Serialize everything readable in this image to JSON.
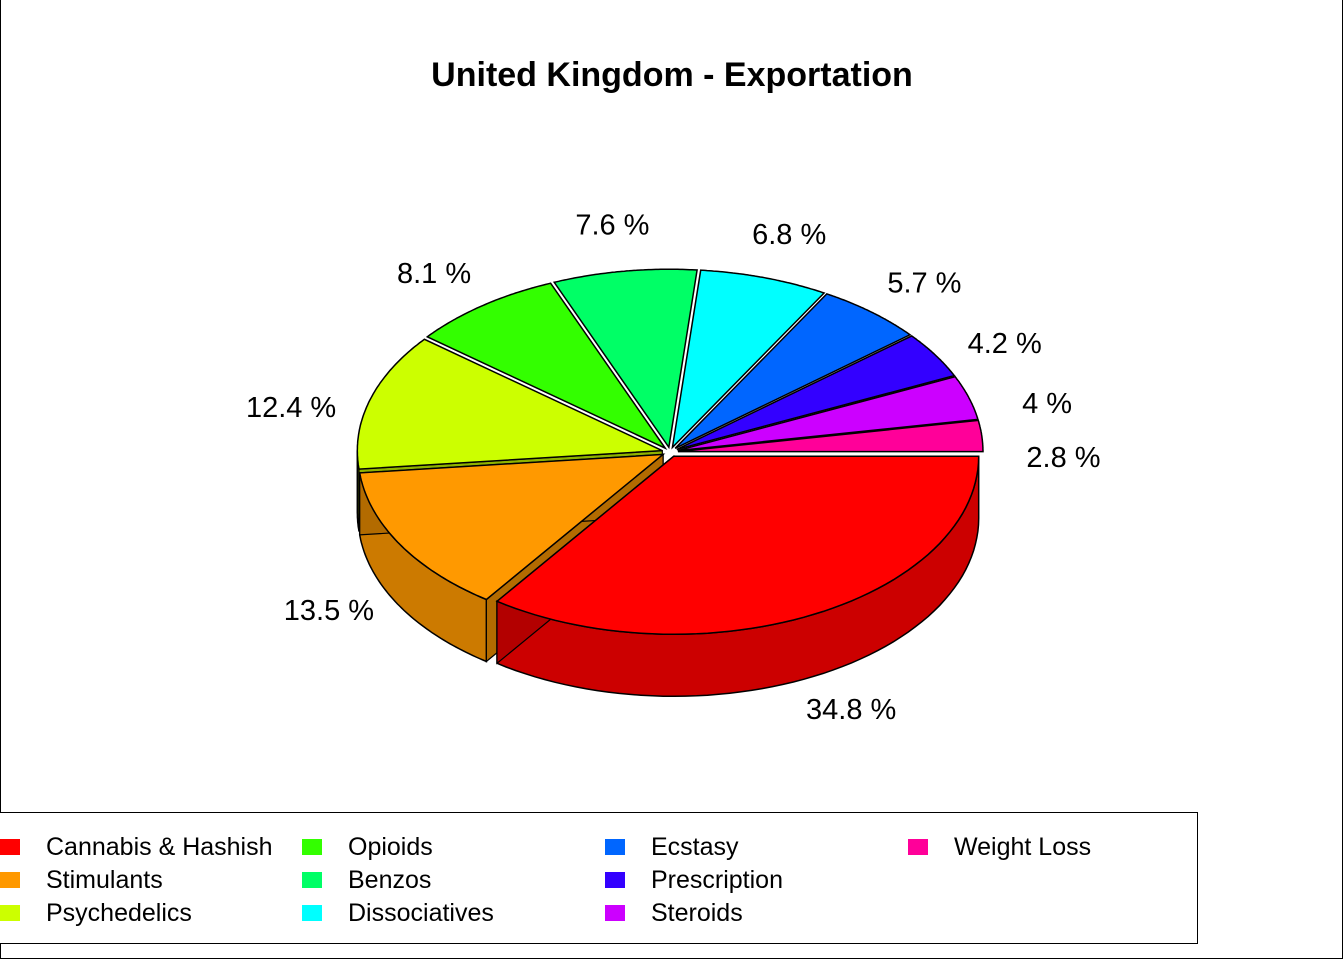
{
  "chart_data": {
    "type": "pie",
    "title": "United Kingdom - Exportation",
    "three_d": true,
    "exploded": true,
    "legend_position": "bottom",
    "slices": [
      {
        "name": "Cannabis & Hashish",
        "value": 34.8,
        "label": "34.8 %",
        "color": "#ff0000"
      },
      {
        "name": "Stimulants",
        "value": 13.5,
        "label": "13.5 %",
        "color": "#ff9900"
      },
      {
        "name": "Psychedelics",
        "value": 12.4,
        "label": "12.4 %",
        "color": "#ccff00"
      },
      {
        "name": "Opioids",
        "value": 8.1,
        "label": "8.1 %",
        "color": "#33ff00"
      },
      {
        "name": "Benzos",
        "value": 7.6,
        "label": "7.6 %",
        "color": "#00ff66"
      },
      {
        "name": "Dissociatives",
        "value": 6.8,
        "label": "6.8 %",
        "color": "#00ffff"
      },
      {
        "name": "Ecstasy",
        "value": 5.7,
        "label": "5.7 %",
        "color": "#0066ff"
      },
      {
        "name": "Prescription",
        "value": 4.2,
        "label": "4.2 %",
        "color": "#3300ff"
      },
      {
        "name": "Steroids",
        "value": 4.0,
        "label": "4 %",
        "color": "#cc00ff"
      },
      {
        "name": "Weight Loss",
        "value": 2.8,
        "label": "2.8 %",
        "color": "#ff0099"
      }
    ]
  }
}
